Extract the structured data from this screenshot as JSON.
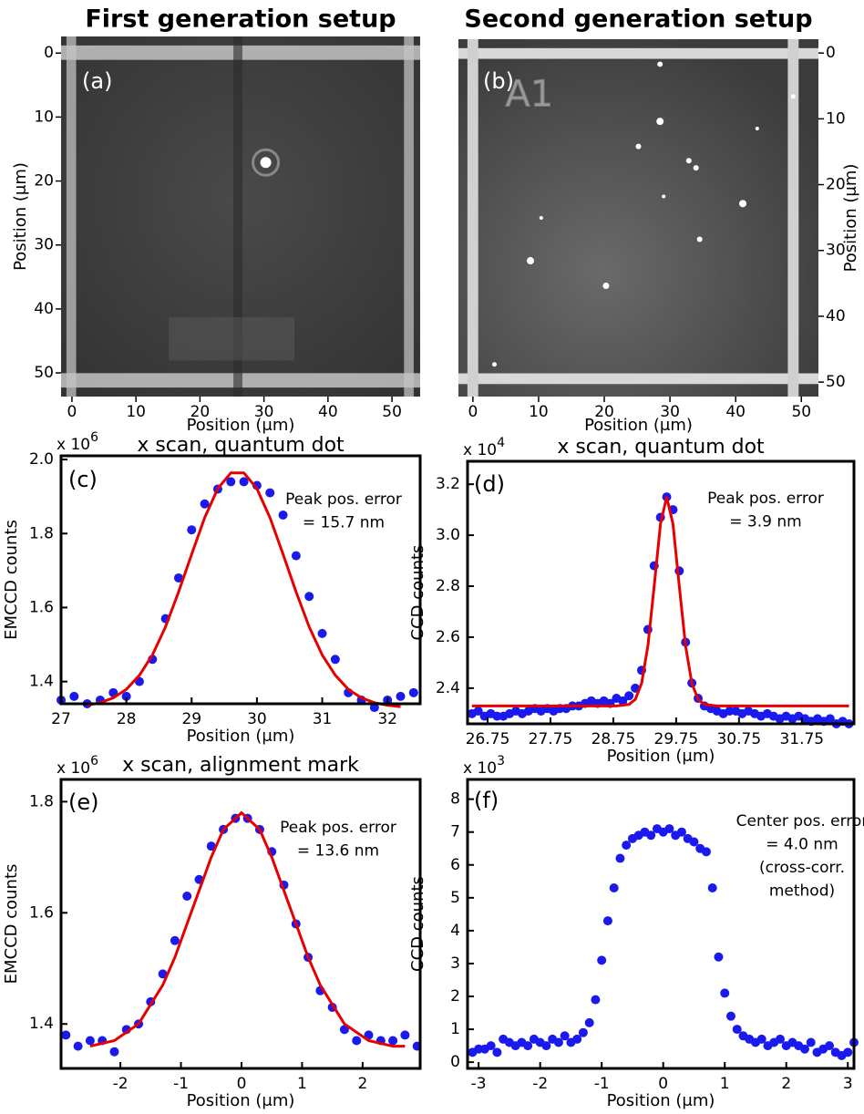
{
  "chart_data": [
    {
      "type": "image",
      "title": "First generation setup",
      "panel_label": "(a)",
      "xlabel": "Position (μm)",
      "ylabel": "Position (μm)",
      "xlim": [
        -1.7,
        54.4
      ],
      "ylim": [
        -2.6,
        53.7
      ],
      "y_inverted": true,
      "yaxis_side": "left",
      "xticks": [
        0,
        10,
        20,
        30,
        40,
        50
      ],
      "yticks": [
        0,
        10,
        20,
        30,
        40,
        50
      ]
    },
    {
      "type": "image",
      "title": "Second generation setup",
      "panel_label": "(b)",
      "image_text": "A1",
      "xlabel": "Position (μm)",
      "ylabel": "Position (μm)",
      "xlim": [
        -2.2,
        52.6
      ],
      "ylim": [
        -2.1,
        52.2
      ],
      "y_inverted": true,
      "yaxis_side": "right",
      "xticks": [
        0,
        10,
        20,
        30,
        40,
        50
      ],
      "yticks": [
        0,
        10,
        20,
        30,
        40,
        50
      ]
    },
    {
      "type": "scatter",
      "title": "x scan, quantum dot",
      "panel_label": "(c)",
      "xlabel": "Position (μm)",
      "ylabel": "EMCCD counts",
      "y_multiplier": {
        "base": "x 10",
        "exponent": "6"
      },
      "annotation": [
        "Peak pos. error",
        "= 15.7 nm"
      ],
      "xlim": [
        27,
        32.5
      ],
      "ylim": [
        1.34,
        2.01
      ],
      "xticks": [
        27,
        28,
        29,
        30,
        31,
        32
      ],
      "yticks": [
        1.4,
        1.6,
        1.8,
        {
          "value": 2,
          "label": "2.0"
        }
      ],
      "series": [
        {
          "style": "markers",
          "color": "#1a1aee",
          "x": [
            27.0,
            27.2,
            27.4,
            27.6,
            27.8,
            28.0,
            28.2,
            28.4,
            28.6,
            28.8,
            29.0,
            29.2,
            29.4,
            29.6,
            29.8,
            30.0,
            30.2,
            30.4,
            30.6,
            30.8,
            31.0,
            31.2,
            31.4,
            31.6,
            31.8,
            32.0,
            32.2,
            32.4
          ],
          "values": [
            1.35,
            1.36,
            1.34,
            1.35,
            1.37,
            1.36,
            1.4,
            1.46,
            1.57,
            1.68,
            1.81,
            1.88,
            1.92,
            1.94,
            1.94,
            1.93,
            1.91,
            1.85,
            1.74,
            1.63,
            1.53,
            1.46,
            1.37,
            1.35,
            1.33,
            1.35,
            1.36,
            1.37
          ]
        },
        {
          "style": "line",
          "color": "#e60000",
          "x": [
            27.4,
            27.6,
            27.8,
            28.0,
            28.2,
            28.4,
            28.6,
            28.8,
            29.0,
            29.2,
            29.4,
            29.6,
            29.8,
            30.0,
            30.2,
            30.4,
            30.6,
            30.8,
            31.0,
            31.2,
            31.4,
            31.6,
            31.8,
            32.0,
            32.2
          ],
          "values": [
            1.336,
            1.343,
            1.356,
            1.379,
            1.417,
            1.472,
            1.548,
            1.642,
            1.744,
            1.843,
            1.921,
            1.964,
            1.964,
            1.921,
            1.843,
            1.744,
            1.642,
            1.548,
            1.472,
            1.417,
            1.379,
            1.356,
            1.343,
            1.336,
            1.332
          ]
        }
      ]
    },
    {
      "type": "scatter",
      "title": "x scan, quantum dot",
      "panel_label": "(d)",
      "xlabel": "Position (μm)",
      "ylabel": "CCD counts",
      "y_multiplier": {
        "base": "x 10",
        "exponent": "4"
      },
      "annotation": [
        "Peak pos. error",
        "= 3.9 nm"
      ],
      "xlim": [
        26.43,
        32.58
      ],
      "ylim": [
        2.26,
        3.29
      ],
      "xticks": [
        26.75,
        27.75,
        28.75,
        29.75,
        30.75,
        31.75
      ],
      "yticks": [
        2.4,
        2.6,
        2.8,
        {
          "value": 3,
          "label": "3.0"
        },
        3.2
      ],
      "series": [
        {
          "style": "markers",
          "color": "#1a1aee",
          "x": [
            26.5,
            26.6,
            26.7,
            26.8,
            26.9,
            27.0,
            27.1,
            27.2,
            27.3,
            27.4,
            27.5,
            27.6,
            27.7,
            27.8,
            27.9,
            28.0,
            28.1,
            28.2,
            28.3,
            28.4,
            28.5,
            28.6,
            28.7,
            28.8,
            28.9,
            29.0,
            29.1,
            29.2,
            29.3,
            29.4,
            29.5,
            29.6,
            29.7,
            29.8,
            29.9,
            30.0,
            30.1,
            30.2,
            30.3,
            30.4,
            30.5,
            30.6,
            30.7,
            30.8,
            30.9,
            31.0,
            31.1,
            31.2,
            31.3,
            31.4,
            31.5,
            31.6,
            31.7,
            31.8,
            31.9,
            32.0,
            32.1,
            32.2,
            32.3,
            32.4,
            32.5
          ],
          "values": [
            2.3,
            2.31,
            2.29,
            2.3,
            2.29,
            2.29,
            2.3,
            2.31,
            2.3,
            2.31,
            2.32,
            2.31,
            2.32,
            2.31,
            2.32,
            2.32,
            2.33,
            2.33,
            2.34,
            2.35,
            2.34,
            2.35,
            2.34,
            2.36,
            2.35,
            2.37,
            2.4,
            2.47,
            2.63,
            2.88,
            3.07,
            3.15,
            3.1,
            2.86,
            2.58,
            2.42,
            2.36,
            2.33,
            2.32,
            2.31,
            2.3,
            2.31,
            2.31,
            2.3,
            2.31,
            2.3,
            2.29,
            2.3,
            2.29,
            2.28,
            2.29,
            2.28,
            2.29,
            2.28,
            2.27,
            2.28,
            2.27,
            2.28,
            2.26,
            2.27,
            2.26
          ]
        },
        {
          "style": "line",
          "color": "#e60000",
          "x": [
            26.5,
            28.6,
            28.8,
            29.0,
            29.1,
            29.2,
            29.3,
            29.4,
            29.5,
            29.6,
            29.7,
            29.8,
            29.9,
            30.0,
            30.1,
            30.2,
            30.4,
            32.5
          ],
          "values": [
            2.33,
            2.33,
            2.33,
            2.336,
            2.356,
            2.419,
            2.566,
            2.801,
            3.044,
            3.15,
            3.044,
            2.801,
            2.566,
            2.419,
            2.356,
            2.336,
            2.33,
            2.33
          ]
        }
      ]
    },
    {
      "type": "scatter",
      "title": "x scan, alignment mark",
      "panel_label": "(e)",
      "xlabel": "Position (μm)",
      "ylabel": "EMCCD counts",
      "y_multiplier": {
        "base": "x 10",
        "exponent": "6"
      },
      "annotation": [
        "Peak pos. error",
        "= 13.6 nm"
      ],
      "xlim": [
        -2.98,
        2.95
      ],
      "ylim": [
        1.32,
        1.84
      ],
      "xticks": [
        -2,
        -1,
        0,
        1,
        2
      ],
      "yticks": [
        1.4,
        1.6,
        1.8
      ],
      "series": [
        {
          "style": "markers",
          "color": "#1a1aee",
          "x": [
            -2.9,
            -2.7,
            -2.5,
            -2.3,
            -2.1,
            -1.9,
            -1.7,
            -1.5,
            -1.3,
            -1.1,
            -0.9,
            -0.7,
            -0.5,
            -0.3,
            -0.1,
            0.1,
            0.3,
            0.5,
            0.7,
            0.9,
            1.1,
            1.3,
            1.5,
            1.7,
            1.9,
            2.1,
            2.3,
            2.5,
            2.7,
            2.9
          ],
          "values": [
            1.38,
            1.36,
            1.37,
            1.37,
            1.35,
            1.39,
            1.4,
            1.44,
            1.49,
            1.55,
            1.63,
            1.66,
            1.72,
            1.75,
            1.77,
            1.77,
            1.75,
            1.71,
            1.65,
            1.58,
            1.52,
            1.46,
            1.43,
            1.39,
            1.37,
            1.38,
            1.37,
            1.37,
            1.38,
            1.36
          ]
        },
        {
          "style": "line",
          "color": "#e60000",
          "x": [
            -2.5,
            -2.1,
            -1.7,
            -1.3,
            -1.1,
            -0.9,
            -0.7,
            -0.5,
            -0.3,
            0,
            0.3,
            0.5,
            0.7,
            0.9,
            1.1,
            1.3,
            1.7,
            2.1,
            2.5,
            2.7
          ],
          "values": [
            1.36,
            1.37,
            1.4,
            1.47,
            1.52,
            1.58,
            1.64,
            1.7,
            1.75,
            1.78,
            1.75,
            1.7,
            1.64,
            1.58,
            1.52,
            1.47,
            1.4,
            1.37,
            1.36,
            1.36
          ]
        }
      ]
    },
    {
      "type": "scatter",
      "panel_label": "(f)",
      "xlabel": "Position (μm)",
      "ylabel": "CCD counts",
      "y_multiplier": {
        "base": "x 10",
        "exponent": "3"
      },
      "annotation": [
        "Center pos. error",
        "= 4.0 nm",
        "(cross-corr.",
        "method)"
      ],
      "xlim": [
        -3.18,
        3.1
      ],
      "ylim": [
        -0.19,
        8.6
      ],
      "xticks": [
        -3,
        -2,
        -1,
        0,
        1,
        2,
        3
      ],
      "yticks": [
        0,
        1,
        2,
        3,
        4,
        5,
        6,
        7,
        8
      ],
      "series": [
        {
          "style": "markers",
          "color": "#1a1aee",
          "x": [
            -3.1,
            -3.0,
            -2.9,
            -2.8,
            -2.7,
            -2.6,
            -2.5,
            -2.4,
            -2.3,
            -2.2,
            -2.1,
            -2.0,
            -1.9,
            -1.8,
            -1.7,
            -1.6,
            -1.5,
            -1.4,
            -1.3,
            -1.2,
            -1.1,
            -1.0,
            -0.9,
            -0.8,
            -0.7,
            -0.6,
            -0.5,
            -0.4,
            -0.3,
            -0.2,
            -0.1,
            0.0,
            0.1,
            0.2,
            0.3,
            0.4,
            0.5,
            0.6,
            0.7,
            0.8,
            0.9,
            1.0,
            1.1,
            1.2,
            1.3,
            1.4,
            1.5,
            1.6,
            1.7,
            1.8,
            1.9,
            2.0,
            2.1,
            2.2,
            2.3,
            2.4,
            2.5,
            2.6,
            2.7,
            2.8,
            2.9,
            3.0,
            3.1
          ],
          "values": [
            0.3,
            0.4,
            0.4,
            0.5,
            0.3,
            0.7,
            0.6,
            0.5,
            0.6,
            0.5,
            0.7,
            0.6,
            0.5,
            0.7,
            0.6,
            0.8,
            0.6,
            0.7,
            0.9,
            1.2,
            1.9,
            3.1,
            4.3,
            5.3,
            6.2,
            6.6,
            6.8,
            6.9,
            7.0,
            6.9,
            7.1,
            7.0,
            7.1,
            6.9,
            7.0,
            6.8,
            6.7,
            6.5,
            6.4,
            5.3,
            3.2,
            2.1,
            1.4,
            1.0,
            0.8,
            0.7,
            0.6,
            0.7,
            0.5,
            0.6,
            0.7,
            0.5,
            0.6,
            0.5,
            0.4,
            0.6,
            0.3,
            0.4,
            0.5,
            0.3,
            0.2,
            0.3,
            0.6
          ]
        }
      ]
    }
  ]
}
